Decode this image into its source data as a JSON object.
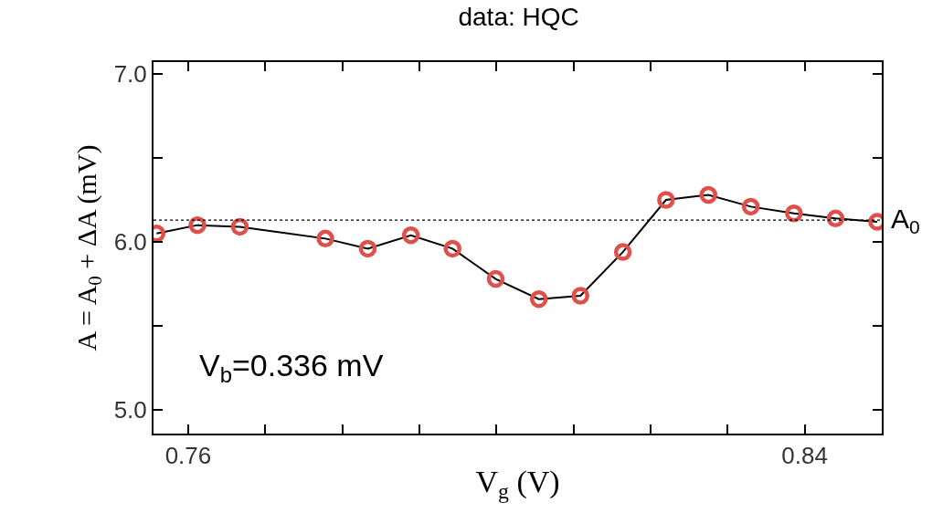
{
  "chart_data": {
    "type": "line",
    "title": "data: HQC",
    "xlabel": "V$_{g}$ (V)",
    "ylabel": "A = A$_{0}$ + ΔA (mV)",
    "annotations": [
      "V$_{b}$=0.336 mV"
    ],
    "x": [
      0.7559,
      0.7612,
      0.7667,
      0.7778,
      0.7833,
      0.7889,
      0.7943,
      0.7999,
      0.8055,
      0.8109,
      0.8164,
      0.822,
      0.8275,
      0.833,
      0.8386,
      0.844,
      0.8494
    ],
    "series": [
      {
        "color": "#000000",
        "marker": "none",
        "values": [
          6.05,
          6.1,
          6.09,
          6.02,
          5.96,
          6.04,
          5.96,
          5.78,
          5.66,
          5.68,
          5.94,
          6.25,
          6.28,
          6.21,
          6.17,
          6.14,
          6.12
        ]
      },
      {
        "type": "scatter",
        "color": "#e0504a",
        "marker": "circle",
        "values": [
          6.05,
          6.1,
          6.09,
          6.02,
          5.96,
          6.04,
          5.96,
          5.78,
          5.66,
          5.68,
          5.94,
          6.25,
          6.28,
          6.21,
          6.17,
          6.14,
          6.12
        ]
      }
    ],
    "xlim": [
      0.7555,
      0.85
    ],
    "xticks": [
      0.76,
      {
        "value": 0.77,
        "label": null
      },
      {
        "value": 0.78,
        "label": null
      },
      {
        "value": 0.79,
        "label": null
      },
      {
        "value": 0.8,
        "label": null
      },
      {
        "value": 0.81,
        "label": null
      },
      {
        "value": 0.82,
        "label": null
      },
      {
        "value": 0.83,
        "label": null
      },
      0.84
    ],
    "ylim": [
      4.86,
      7.07
    ],
    "yticks": [
      {
        "value": 5,
        "label": "5.0"
      },
      {
        "value": 5.5,
        "label": null
      },
      {
        "value": 6,
        "label": "6.0"
      },
      {
        "value": 6.5,
        "label": null
      },
      {
        "value": 7,
        "label": "7.0"
      }
    ],
    "ref_lines": [
      {
        "axis": "y",
        "value": 6.13,
        "label": "A$_{0}$",
        "color": "#000000",
        "line_style": "dotted"
      }
    ]
  }
}
